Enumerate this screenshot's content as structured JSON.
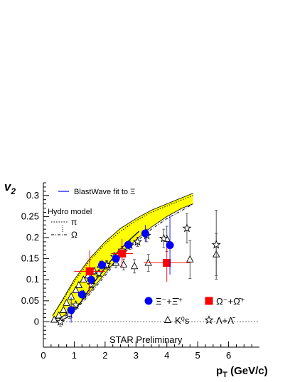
{
  "chart_data": {
    "type": "scatter",
    "xlabel": "p_T (GeV/c)",
    "ylabel": "v_2",
    "xlim": [
      0,
      7
    ],
    "ylim": [
      -0.06,
      0.33
    ],
    "x_ticks": [
      0,
      1,
      2,
      3,
      4,
      5,
      6
    ],
    "y_ticks": [
      0,
      0.05,
      0.1,
      0.15,
      0.2,
      0.25,
      0.3
    ],
    "grid": false,
    "legend_position": "bottom-right",
    "annotations": {
      "blastwave": "BlastWave fit to Ξ",
      "hydro_title": "Hydro model",
      "hydro_pi": "π",
      "hydro_omega": "Ω",
      "preliminary": "STAR Preliminary"
    },
    "band": {
      "color": "#ffff00",
      "upper": [
        [
          0.3,
          0.015
        ],
        [
          0.6,
          0.05
        ],
        [
          1,
          0.1
        ],
        [
          1.5,
          0.15
        ],
        [
          2,
          0.19
        ],
        [
          2.5,
          0.222
        ],
        [
          3,
          0.245
        ],
        [
          3.5,
          0.265
        ],
        [
          4,
          0.28
        ],
        [
          4.5,
          0.295
        ],
        [
          4.85,
          0.305
        ]
      ],
      "lower": [
        [
          0.3,
          0.005
        ],
        [
          0.6,
          0.012
        ],
        [
          1,
          0.03
        ],
        [
          1.5,
          0.07
        ],
        [
          2,
          0.115
        ],
        [
          2.5,
          0.16
        ],
        [
          3,
          0.195
        ],
        [
          3.5,
          0.225
        ],
        [
          4,
          0.25
        ],
        [
          4.5,
          0.27
        ],
        [
          4.85,
          0.28
        ]
      ]
    },
    "hydro_pi": [
      [
        0.3,
        0.015
      ],
      [
        0.6,
        0.048
      ],
      [
        1,
        0.095
      ],
      [
        1.5,
        0.145
      ],
      [
        2,
        0.185
      ],
      [
        2.5,
        0.215
      ],
      [
        3,
        0.24
      ],
      [
        3.5,
        0.26
      ],
      [
        4,
        0.275
      ],
      [
        4.5,
        0.29
      ],
      [
        4.85,
        0.3
      ]
    ],
    "hydro_omega": [
      [
        0.3,
        0.003
      ],
      [
        0.6,
        0.01
      ],
      [
        1,
        0.025
      ],
      [
        1.5,
        0.065
      ],
      [
        2,
        0.11
      ],
      [
        2.5,
        0.155
      ],
      [
        3,
        0.19
      ],
      [
        3.5,
        0.22
      ],
      [
        4,
        0.245
      ],
      [
        4.5,
        0.265
      ],
      [
        4.85,
        0.28
      ]
    ],
    "blastwave_fit": [
      [
        0.5,
        0.0
      ],
      [
        0.8,
        0.012
      ],
      [
        1.2,
        0.045
      ],
      [
        1.6,
        0.09
      ],
      [
        2,
        0.128
      ],
      [
        2.4,
        0.165
      ],
      [
        2.8,
        0.195
      ],
      [
        3.1,
        0.215
      ]
    ],
    "series": [
      {
        "name": "Ξ⁻+Ξ̄⁺",
        "marker": "circle",
        "color": "#0000ff",
        "points": [
          {
            "x": 0.9,
            "y": 0.028,
            "ey": 0.03,
            "ex": 0.0
          },
          {
            "x": 1.25,
            "y": 0.065,
            "ey": 0.012,
            "ex": 0.0
          },
          {
            "x": 1.55,
            "y": 0.1,
            "ey": 0.013,
            "ex": 0.0
          },
          {
            "x": 1.9,
            "y": 0.135,
            "ey": 0.013,
            "ex": 0.0
          },
          {
            "x": 2.35,
            "y": 0.15,
            "ey": 0.012,
            "ex": 0.0
          },
          {
            "x": 2.75,
            "y": 0.183,
            "ey": 0.01,
            "ex": 0.0
          },
          {
            "x": 3.3,
            "y": 0.21,
            "ey": 0.02,
            "ex": 0.0
          },
          {
            "x": 4.1,
            "y": 0.182,
            "ey": 0.07,
            "ex": 0.0
          }
        ]
      },
      {
        "name": "Ω⁻+Ω̄⁺",
        "marker": "square",
        "color": "#ff0000",
        "points": [
          {
            "x": 1.5,
            "y": 0.12,
            "ey": 0.05,
            "ex": 0.5
          },
          {
            "x": 2.55,
            "y": 0.162,
            "ey": 0.035,
            "ex": 0.35
          },
          {
            "x": 4.0,
            "y": 0.14,
            "ey": 0.045,
            "ex": 0.75
          }
        ]
      },
      {
        "name": "K⁰s",
        "marker": "triangle",
        "color": "#000000",
        "points": [
          {
            "x": 0.35,
            "y": 0.005,
            "ey": 0.003
          },
          {
            "x": 0.5,
            "y": 0.015,
            "ey": 0.004
          },
          {
            "x": 0.65,
            "y": 0.028,
            "ey": 0.004
          },
          {
            "x": 0.75,
            "y": 0.045,
            "ey": 0.005
          },
          {
            "x": 0.9,
            "y": 0.06,
            "ey": 0.005
          },
          {
            "x": 1.05,
            "y": 0.075,
            "ey": 0.005
          },
          {
            "x": 1.15,
            "y": 0.087,
            "ey": 0.006
          },
          {
            "x": 1.3,
            "y": 0.1,
            "ey": 0.006
          },
          {
            "x": 1.45,
            "y": 0.11,
            "ey": 0.007
          },
          {
            "x": 1.65,
            "y": 0.12,
            "ey": 0.008
          },
          {
            "x": 1.85,
            "y": 0.135,
            "ey": 0.009
          },
          {
            "x": 2.05,
            "y": 0.135,
            "ey": 0.01
          },
          {
            "x": 2.35,
            "y": 0.14,
            "ey": 0.012
          },
          {
            "x": 2.6,
            "y": 0.136,
            "ey": 0.013
          },
          {
            "x": 2.95,
            "y": 0.132,
            "ey": 0.016
          },
          {
            "x": 3.4,
            "y": 0.14,
            "ey": 0.02
          },
          {
            "x": 4.0,
            "y": 0.197,
            "ey": 0.03
          },
          {
            "x": 4.75,
            "y": 0.148,
            "ey": 0.045
          },
          {
            "x": 5.6,
            "y": 0.16,
            "ey": 0.05
          }
        ]
      },
      {
        "name": "Λ+Λ̄",
        "marker": "star",
        "color": "#000000",
        "points": [
          {
            "x": 0.55,
            "y": 0.0,
            "ey": 0.01
          },
          {
            "x": 0.85,
            "y": 0.018,
            "ey": 0.01
          },
          {
            "x": 1.05,
            "y": 0.04,
            "ey": 0.008
          },
          {
            "x": 1.3,
            "y": 0.065,
            "ey": 0.007
          },
          {
            "x": 1.55,
            "y": 0.088,
            "ey": 0.007
          },
          {
            "x": 1.8,
            "y": 0.115,
            "ey": 0.007
          },
          {
            "x": 2.05,
            "y": 0.135,
            "ey": 0.008
          },
          {
            "x": 2.3,
            "y": 0.155,
            "ey": 0.008
          },
          {
            "x": 2.55,
            "y": 0.17,
            "ey": 0.009
          },
          {
            "x": 2.8,
            "y": 0.182,
            "ey": 0.01
          },
          {
            "x": 3.05,
            "y": 0.19,
            "ey": 0.011
          },
          {
            "x": 3.35,
            "y": 0.205,
            "ey": 0.015
          },
          {
            "x": 3.9,
            "y": 0.198,
            "ey": 0.022
          },
          {
            "x": 4.65,
            "y": 0.222,
            "ey": 0.035
          },
          {
            "x": 5.6,
            "y": 0.183,
            "ey": 0.082
          }
        ]
      }
    ]
  }
}
